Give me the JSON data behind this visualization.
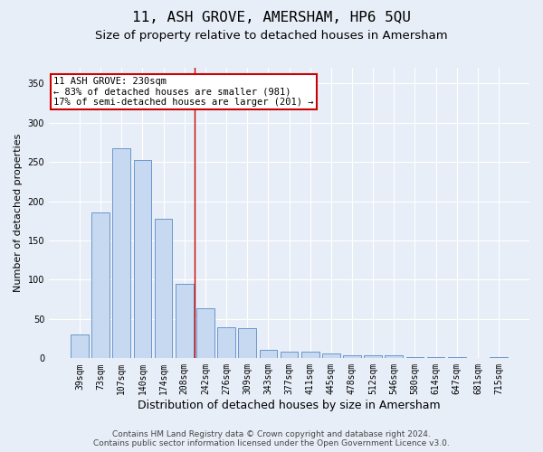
{
  "title": "11, ASH GROVE, AMERSHAM, HP6 5QU",
  "subtitle": "Size of property relative to detached houses in Amersham",
  "xlabel": "Distribution of detached houses by size in Amersham",
  "ylabel": "Number of detached properties",
  "categories": [
    "39sqm",
    "73sqm",
    "107sqm",
    "140sqm",
    "174sqm",
    "208sqm",
    "242sqm",
    "276sqm",
    "309sqm",
    "343sqm",
    "377sqm",
    "411sqm",
    "445sqm",
    "478sqm",
    "512sqm",
    "546sqm",
    "580sqm",
    "614sqm",
    "647sqm",
    "681sqm",
    "715sqm"
  ],
  "values": [
    30,
    186,
    267,
    252,
    178,
    95,
    64,
    39,
    38,
    11,
    9,
    8,
    6,
    4,
    4,
    4,
    2,
    1,
    2,
    0,
    2
  ],
  "bar_color": "#c6d9f0",
  "bar_edge_color": "#5a8ac6",
  "vline_x": 5.5,
  "vline_color": "#cc0000",
  "annotation_line1": "11 ASH GROVE: 230sqm",
  "annotation_line2": "← 83% of detached houses are smaller (981)",
  "annotation_line3": "17% of semi-detached houses are larger (201) →",
  "annotation_box_color": "#ffffff",
  "annotation_box_edge_color": "#cc0000",
  "ylim": [
    0,
    370
  ],
  "yticks": [
    0,
    50,
    100,
    150,
    200,
    250,
    300,
    350
  ],
  "background_color": "#e8eef7",
  "plot_background_color": "#e8eef7",
  "grid_color": "#ffffff",
  "footer_line1": "Contains HM Land Registry data © Crown copyright and database right 2024.",
  "footer_line2": "Contains public sector information licensed under the Open Government Licence v3.0.",
  "title_fontsize": 11.5,
  "subtitle_fontsize": 9.5,
  "xlabel_fontsize": 9,
  "ylabel_fontsize": 8,
  "tick_fontsize": 7,
  "annotation_fontsize": 7.5,
  "footer_fontsize": 6.5
}
